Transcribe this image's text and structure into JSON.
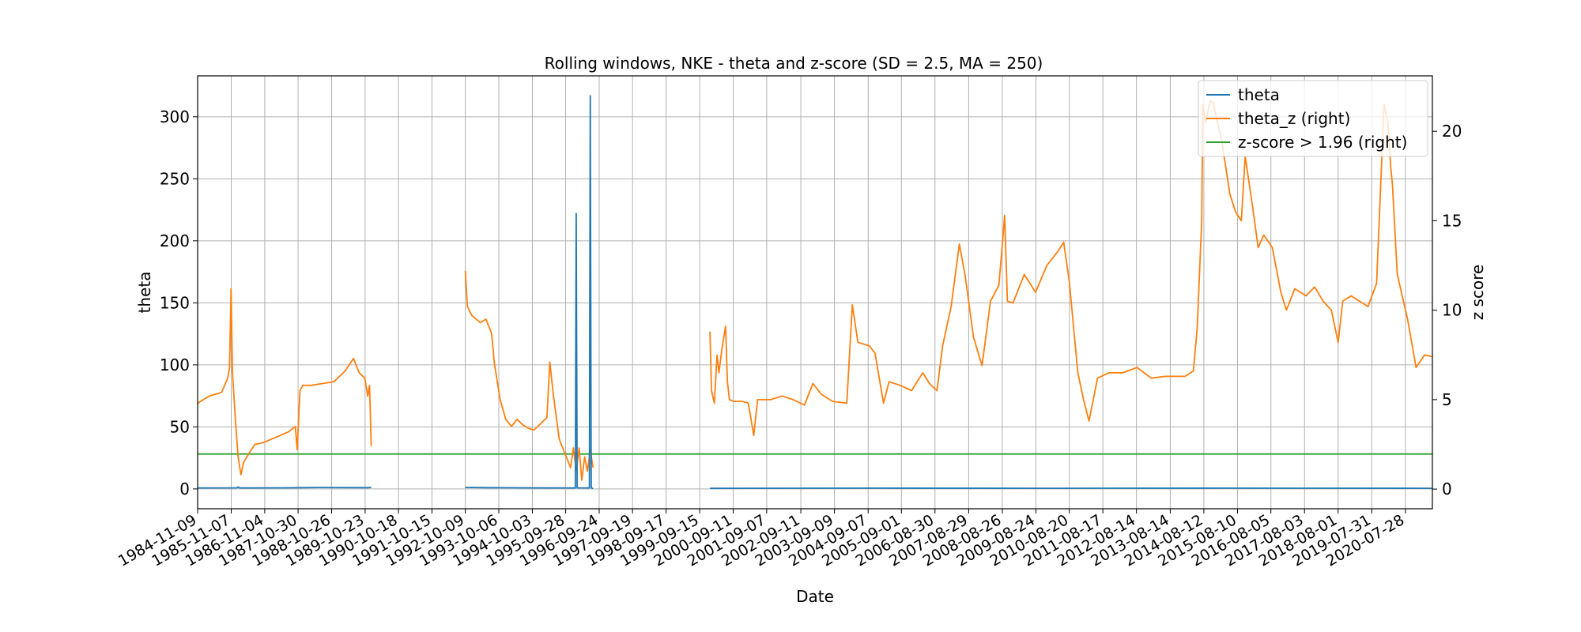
{
  "chart_data": {
    "type": "line",
    "title": "Rolling windows, NKE - theta and z-score (SD = 2.5, MA = 250)",
    "xlabel": "Date",
    "ylabel": "theta",
    "ylabel_right": "z score",
    "ylim": [
      -16,
      333
    ],
    "ylim_right": [
      -1.1,
      23.1
    ],
    "xlim": [
      "1984-11-09",
      "2021-05-15"
    ],
    "yticks": [
      0,
      50,
      100,
      150,
      200,
      250,
      300
    ],
    "yticks_right": [
      0,
      5,
      10,
      15,
      20
    ],
    "xticks": [
      "1984-11-09",
      "1985-11-07",
      "1986-11-04",
      "1987-10-30",
      "1988-10-26",
      "1989-10-23",
      "1990-10-18",
      "1991-10-15",
      "1992-10-09",
      "1993-10-06",
      "1994-10-03",
      "1995-09-28",
      "1996-09-24",
      "1997-09-19",
      "1998-09-17",
      "1999-09-15",
      "2000-09-11",
      "2001-09-07",
      "2002-09-11",
      "2003-09-09",
      "2004-09-07",
      "2005-09-01",
      "2006-08-30",
      "2007-08-29",
      "2008-08-26",
      "2009-08-24",
      "2010-08-20",
      "2011-08-17",
      "2012-08-14",
      "2013-08-14",
      "2014-08-12",
      "2015-08-10",
      "2016-08-05",
      "2017-08-03",
      "2018-08-01",
      "2019-07-31",
      "2020-07-28"
    ],
    "grid": true,
    "legend_position": "top-right",
    "series": [
      {
        "name": "theta",
        "axis": "left",
        "color": "#1f77b4",
        "segments": [
          [
            [
              "1984-11-09",
              0.8
            ],
            [
              "1986-01-10",
              0.9
            ],
            [
              "1986-01-20",
              1.5
            ],
            [
              "1986-02-05",
              0.8
            ],
            [
              "1987-06-01",
              0.9
            ],
            [
              "1988-06-01",
              1.1
            ],
            [
              "1989-12-01",
              1.0
            ],
            [
              "1989-12-28",
              1.4
            ]
          ],
          [
            [
              "1992-10-09",
              1.2
            ],
            [
              "1993-06-01",
              1.0
            ],
            [
              "1994-06-01",
              0.9
            ],
            [
              "1995-06-01",
              0.8
            ],
            [
              "1996-01-10",
              0.8
            ],
            [
              "1996-01-20",
              222
            ],
            [
              "1996-01-30",
              0.9
            ],
            [
              "1996-06-10",
              0.8
            ],
            [
              "1996-06-20",
              317
            ],
            [
              "1996-06-30",
              1.0
            ],
            [
              "1996-07-20",
              0.2
            ]
          ],
          [
            [
              "2000-01-03",
              0.4
            ],
            [
              "2005-01-03",
              0.6
            ],
            [
              "2010-01-04",
              0.5
            ],
            [
              "2015-01-02",
              0.6
            ],
            [
              "2021-05-14",
              0.5
            ]
          ]
        ]
      },
      {
        "name": "theta_z (right)",
        "axis": "right",
        "color": "#ff7f0e",
        "segments": [
          [
            [
              "1984-11-09",
              4.8
            ],
            [
              "1985-01-10",
              5.0
            ],
            [
              "1985-03-15",
              5.2
            ],
            [
              "1985-05-20",
              5.3
            ],
            [
              "1985-07-25",
              5.4
            ],
            [
              "1985-09-30",
              6.2
            ],
            [
              "1985-10-20",
              6.8
            ],
            [
              "1985-11-05",
              11.2
            ],
            [
              "1985-11-20",
              6.6
            ],
            [
              "1985-12-20",
              4.0
            ],
            [
              "1986-01-20",
              1.8
            ],
            [
              "1986-02-20",
              0.8
            ],
            [
              "1986-03-20",
              1.5
            ],
            [
              "1986-05-20",
              2.0
            ],
            [
              "1986-07-20",
              2.5
            ],
            [
              "1986-10-20",
              2.6
            ],
            [
              "1987-01-20",
              2.8
            ],
            [
              "1987-04-20",
              3.0
            ],
            [
              "1987-07-20",
              3.2
            ],
            [
              "1987-09-30",
              3.5
            ],
            [
              "1987-10-20",
              2.2
            ],
            [
              "1987-11-20",
              5.5
            ],
            [
              "1987-12-20",
              5.8
            ],
            [
              "1988-03-20",
              5.8
            ],
            [
              "1988-07-20",
              5.9
            ],
            [
              "1988-11-20",
              6.0
            ],
            [
              "1989-03-20",
              6.6
            ],
            [
              "1989-06-20",
              7.3
            ],
            [
              "1989-08-20",
              6.5
            ],
            [
              "1989-10-20",
              6.2
            ],
            [
              "1989-11-20",
              5.2
            ],
            [
              "1989-12-10",
              5.8
            ],
            [
              "1989-12-28",
              2.4
            ]
          ],
          [
            [
              "1992-10-09",
              12.2
            ],
            [
              "1992-11-01",
              10.2
            ],
            [
              "1992-12-20",
              9.7
            ],
            [
              "1993-03-20",
              9.3
            ],
            [
              "1993-05-20",
              9.5
            ],
            [
              "1993-07-20",
              8.7
            ],
            [
              "1993-08-20",
              7.0
            ],
            [
              "1993-10-20",
              5.0
            ],
            [
              "1993-12-20",
              3.9
            ],
            [
              "1994-02-20",
              3.5
            ],
            [
              "1994-04-20",
              3.9
            ],
            [
              "1994-06-20",
              3.6
            ],
            [
              "1994-08-20",
              3.4
            ],
            [
              "1994-10-20",
              3.3
            ],
            [
              "1994-12-20",
              3.6
            ],
            [
              "1995-03-10",
              4.0
            ],
            [
              "1995-04-10",
              7.1
            ],
            [
              "1995-05-20",
              5.2
            ],
            [
              "1995-07-20",
              2.8
            ],
            [
              "1995-09-20",
              2.0
            ],
            [
              "1995-11-20",
              1.2
            ],
            [
              "1995-12-20",
              2.3
            ],
            [
              "1996-01-20",
              1.0
            ],
            [
              "1996-02-20",
              2.3
            ],
            [
              "1996-03-20",
              0.5
            ],
            [
              "1996-04-20",
              1.8
            ],
            [
              "1996-05-20",
              1.0
            ],
            [
              "1996-06-20",
              2.2
            ],
            [
              "1996-07-20",
              1.2
            ]
          ],
          [
            [
              "2000-01-03",
              8.8
            ],
            [
              "2000-01-20",
              5.5
            ],
            [
              "2000-02-20",
              4.8
            ],
            [
              "2000-03-20",
              7.5
            ],
            [
              "2000-04-10",
              6.5
            ],
            [
              "2000-05-10",
              7.8
            ],
            [
              "2000-06-20",
              9.1
            ],
            [
              "2000-07-10",
              6.0
            ],
            [
              "2000-08-01",
              5.0
            ],
            [
              "2000-09-20",
              4.9
            ],
            [
              "2000-12-20",
              4.9
            ],
            [
              "2001-02-20",
              4.8
            ],
            [
              "2001-04-20",
              3.0
            ],
            [
              "2001-06-01",
              5.0
            ],
            [
              "2001-10-20",
              5.0
            ],
            [
              "2002-02-20",
              5.2
            ],
            [
              "2002-06-20",
              5.0
            ],
            [
              "2002-10-20",
              4.7
            ],
            [
              "2003-01-20",
              5.9
            ],
            [
              "2003-04-20",
              5.3
            ],
            [
              "2003-08-20",
              4.9
            ],
            [
              "2004-01-20",
              4.8
            ],
            [
              "2004-03-20",
              10.3
            ],
            [
              "2004-05-20",
              8.2
            ],
            [
              "2004-09-20",
              8.0
            ],
            [
              "2004-11-20",
              7.6
            ],
            [
              "2005-02-20",
              4.8
            ],
            [
              "2005-04-20",
              6.0
            ],
            [
              "2005-08-20",
              5.8
            ],
            [
              "2005-12-20",
              5.5
            ],
            [
              "2006-04-20",
              6.5
            ],
            [
              "2006-07-01",
              5.9
            ],
            [
              "2006-09-20",
              5.5
            ],
            [
              "2006-11-20",
              8.0
            ],
            [
              "2007-02-20",
              10.2
            ],
            [
              "2007-05-20",
              13.7
            ],
            [
              "2007-07-20",
              12.0
            ],
            [
              "2007-10-20",
              8.5
            ],
            [
              "2008-01-20",
              6.9
            ],
            [
              "2008-04-20",
              10.5
            ],
            [
              "2008-07-20",
              11.4
            ],
            [
              "2008-09-01",
              14.0
            ],
            [
              "2008-09-20",
              15.3
            ],
            [
              "2008-10-20",
              10.5
            ],
            [
              "2008-12-20",
              10.4
            ],
            [
              "2009-04-20",
              12.0
            ],
            [
              "2009-08-20",
              11.0
            ],
            [
              "2009-12-20",
              12.5
            ],
            [
              "2010-04-20",
              13.3
            ],
            [
              "2010-06-20",
              13.8
            ],
            [
              "2010-08-20",
              11.6
            ],
            [
              "2010-11-20",
              6.5
            ],
            [
              "2011-01-20",
              5.0
            ],
            [
              "2011-03-20",
              3.8
            ],
            [
              "2011-06-20",
              6.2
            ],
            [
              "2011-10-20",
              6.5
            ],
            [
              "2012-03-20",
              6.5
            ],
            [
              "2012-08-20",
              6.8
            ],
            [
              "2013-01-20",
              6.2
            ],
            [
              "2013-06-20",
              6.3
            ],
            [
              "2014-01-20",
              6.3
            ],
            [
              "2014-04-20",
              6.6
            ],
            [
              "2014-06-01",
              9.0
            ],
            [
              "2014-07-20",
              15.0
            ],
            [
              "2014-08-01",
              21.5
            ],
            [
              "2014-09-01",
              20.5
            ],
            [
              "2014-10-20",
              21.7
            ],
            [
              "2014-11-20",
              21.6
            ],
            [
              "2015-02-20",
              19.5
            ],
            [
              "2015-05-20",
              16.5
            ],
            [
              "2015-07-20",
              15.5
            ],
            [
              "2015-09-20",
              15.0
            ],
            [
              "2015-11-01",
              18.6
            ],
            [
              "2016-01-20",
              15.8
            ],
            [
              "2016-03-20",
              13.5
            ],
            [
              "2016-05-20",
              14.2
            ],
            [
              "2016-08-20",
              13.5
            ],
            [
              "2016-11-20",
              11.0
            ],
            [
              "2017-01-20",
              10.0
            ],
            [
              "2017-04-20",
              11.2
            ],
            [
              "2017-08-20",
              10.8
            ],
            [
              "2017-11-20",
              11.3
            ],
            [
              "2018-02-20",
              10.5
            ],
            [
              "2018-05-20",
              10.0
            ],
            [
              "2018-08-01",
              8.2
            ],
            [
              "2018-09-20",
              10.5
            ],
            [
              "2018-12-20",
              10.8
            ],
            [
              "2019-03-20",
              10.5
            ],
            [
              "2019-06-20",
              10.2
            ],
            [
              "2019-09-20",
              11.5
            ],
            [
              "2019-12-10",
              21.5
            ],
            [
              "2020-01-20",
              20.5
            ],
            [
              "2020-02-20",
              18.0
            ],
            [
              "2020-03-10",
              17.0
            ],
            [
              "2020-05-01",
              12.0
            ],
            [
              "2020-08-20",
              9.5
            ],
            [
              "2020-11-20",
              6.8
            ],
            [
              "2021-02-20",
              7.5
            ],
            [
              "2021-05-14",
              7.4
            ]
          ]
        ]
      },
      {
        "name": "z-score > 1.96 (right)",
        "axis": "right",
        "color": "#2ca02c",
        "segments": [
          [
            [
              "1984-11-09",
              1.96
            ],
            [
              "2021-05-14",
              1.96
            ]
          ]
        ]
      }
    ]
  }
}
